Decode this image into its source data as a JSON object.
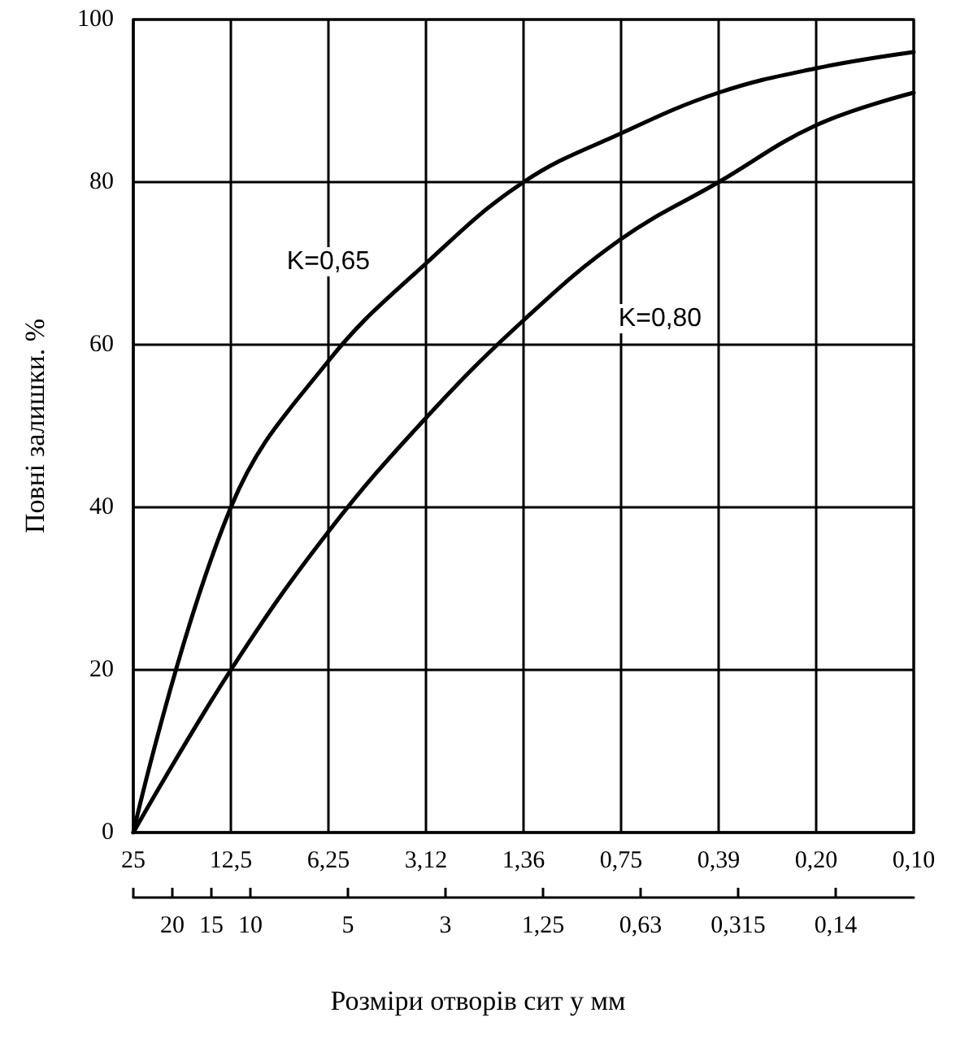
{
  "chart_data": {
    "type": "line",
    "xlabel": "Розміри отворів сит у мм",
    "ylabel": "Повні залишки. %",
    "categories": [
      "25",
      "12,5",
      "6,25",
      "3,12",
      "1,36",
      "0,75",
      "0,39",
      "0,20",
      "0,10"
    ],
    "ylim": [
      0,
      100
    ],
    "yticks": [
      0,
      20,
      40,
      60,
      80,
      100
    ],
    "grid": true,
    "marker": "none",
    "line_style": "solid",
    "series": [
      {
        "name": "K=0,65",
        "color": "#000000",
        "values": [
          0,
          40,
          58,
          70,
          80,
          86,
          91,
          94,
          96
        ]
      },
      {
        "name": "K=0,80",
        "color": "#000000",
        "values": [
          0,
          20,
          37,
          51,
          63,
          73,
          80,
          87,
          91
        ]
      }
    ],
    "annotations": [
      "20",
      "15",
      "10",
      "5",
      "3",
      "1,25",
      "0,63",
      "0,315",
      "0,14"
    ]
  }
}
